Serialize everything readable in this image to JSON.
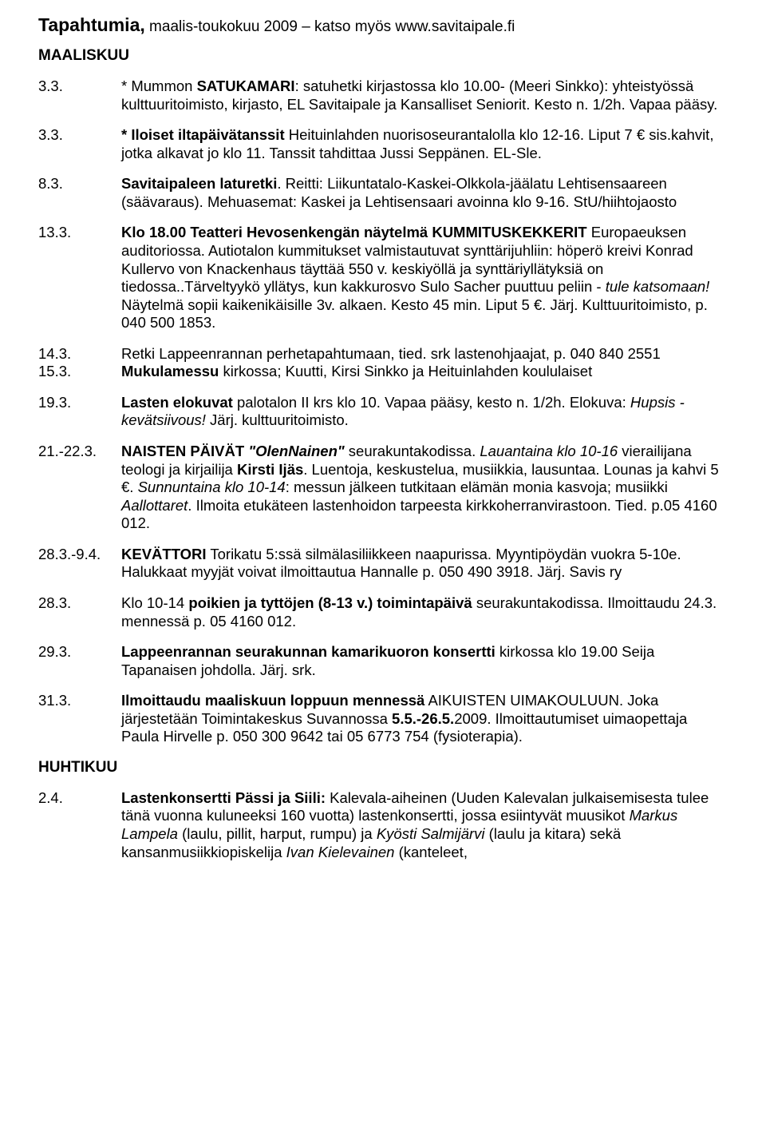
{
  "title_main": "Tapahtumia,",
  "title_rest": " maalis-toukokuu 2009 – katso myös www.savitaipale.fi",
  "section1": "MAALISKUU",
  "section2": "HUHTIKUU",
  "e1_date": "3.3.",
  "e1_a": "* Mummon ",
  "e1_b": "SATUKAMARI",
  "e1_c": ": satuhetki kirjastossa klo 10.00- (Meeri Sinkko): yhteistyössä kulttuuritoimisto, kirjasto, EL Savitaipale ja Kansalliset Seniorit. Kesto n. 1/2h. Vapaa pääsy.",
  "e2_date": "3.3.",
  "e2_a": "* Iloiset iltapäivätanssit",
  "e2_b": " Heituinlahden nuorisoseurantalolla klo 12-16. Liput 7 € sis.kahvit, jotka alkavat jo klo 11. Tanssit tahdittaa Jussi Seppänen. EL-Sle.",
  "e3_date": "8.3.",
  "e3_a": "Savitaipaleen laturetki",
  "e3_b": ". Reitti: Liikuntatalo-Kaskei-Olkkola-jäälatu Lehtisensaareen (säävaraus). Mehuasemat: Kaskei ja Lehtisensaari avoinna klo 9-16. StU/hiihtojaosto",
  "e4_date": "13.3.",
  "e4_a": "Klo 18.00 Teatteri Hevosenkengän näytelmä KUMMITUSKEKKERIT",
  "e4_b": " Europaeuksen auditoriossa. Autiotalon kummitukset valmistautuvat synttärijuhliin: höperö kreivi Konrad Kullervo von Knackenhaus täyttää 550 v. keskiyöllä ja synttäriyllätyksiä on tiedossa..Tärveltyykö yllätys, kun kakkurosvo Sulo Sacher puuttuu peliin - ",
  "e4_c": "tule katsomaan!",
  "e4_d": " Näytelmä sopii kaikenikäisille 3v. alkaen. Kesto 45 min. Liput 5 €. Järj.  Kulttuuritoimisto, p. 040 500 1853.",
  "e5_date": "14.3.",
  "e5_a": "Retki Lappeenrannan perhetapahtumaan, tied. srk lastenohjaajat, p. 040 840 2551",
  "e6_date": "15.3.",
  "e6_a": "Mukulamessu",
  "e6_b": " kirkossa; Kuutti, Kirsi Sinkko ja Heituinlahden koululaiset",
  "e7_date": "19.3.",
  "e7_a": "Lasten elokuvat",
  "e7_b": " palotalon II krs klo 10.  Vapaa pääsy, kesto n. 1/2h. Elokuva: ",
  "e7_c": "Hupsis - kevätsiivous!",
  "e7_d": " Järj. kulttuuritoimisto.",
  "e8_date": "21.-22.3.",
  "e8_a": "NAISTEN PÄIVÄT ",
  "e8_b": "\"OlenNainen\"",
  "e8_c": " seurakuntakodissa. ",
  "e8_d": "Lauantaina klo 10-16",
  "e8_e": " vierailijana teologi ja kirjailija ",
  "e8_f": "Kirsti Ijäs",
  "e8_g": ". Luentoja, keskustelua, musiikkia, lausuntaa. Lounas ja kahvi 5 €.  ",
  "e8_h": "Sunnuntaina klo 10-14",
  "e8_i": ": messun jälkeen tutkitaan elämän monia kasvoja; musiikki ",
  "e8_j": "Aallottaret",
  "e8_k": ". Ilmoita etukäteen lastenhoidon tarpeesta kirkkoherranvirastoon. Tied. p.05 4160 012.",
  "e9_date": "28.3.-9.4.",
  "e9_a": "KEVÄTTORI",
  "e9_b": "  Torikatu 5:ssä silmälasiliikkeen naapurissa. Myyntipöydän vuokra 5-10e. Halukkaat myyjät voivat ilmoittautua Hannalle p. 050 490 3918. Järj. Savis ry",
  "e10_date": "28.3.",
  "e10_a": "Klo 10-14 ",
  "e10_b": "poikien ja tyttöjen (8-13 v.) toimintapäivä",
  "e10_c": " seurakuntakodissa. Ilmoittaudu 24.3. mennessä p. 05 4160 012.",
  "e11_date": "29.3.",
  "e11_a": "Lappeenrannan seurakunnan kamarikuoron konsertti",
  "e11_b": " kirkossa klo 19.00 Seija Tapanaisen johdolla. Järj. srk.",
  "e12_date": "31.3.",
  "e12_a": "Ilmoittaudu maaliskuun loppuun mennessä",
  "e12_b": " AIKUISTEN UIMAKOULUUN. Joka järjestetään Toimintakeskus Suvannossa ",
  "e12_c": "5.5.-26.5.",
  "e12_d": "2009. Ilmoittautumiset uimaopettaja Paula Hirvelle p. 050 300 9642 tai 05 6773 754 (fysioterapia).",
  "e13_date": "2.4.",
  "e13_a": "Lastenkonsertti Pässi ja Siili:",
  "e13_b": " Kalevala-aiheinen (Uuden Kalevalan julkaisemisesta tulee tänä vuonna kuluneeksi 160 vuotta) lastenkonsertti, jossa esiintyvät muusikot ",
  "e13_c": "Markus Lampela",
  "e13_d": " (laulu, pillit, harput, rumpu) ja ",
  "e13_e": "Kyösti Salmijärvi",
  "e13_f": " (laulu ja kitara) sekä kansanmusiikkiopiskelija ",
  "e13_g": "Ivan Kielevainen",
  "e13_h": " (kanteleet,"
}
